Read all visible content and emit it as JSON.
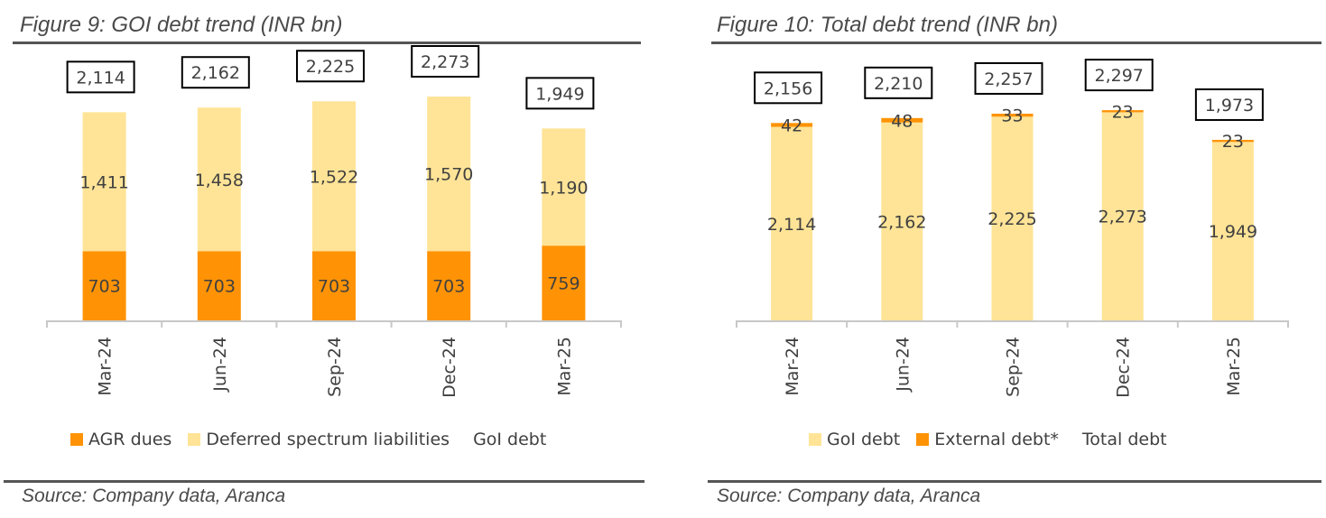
{
  "colors": {
    "agr": "#FF9305",
    "deferred": "#FFE497",
    "goi": "#FFE497",
    "external": "#FF9305",
    "text": "#404040",
    "box_border": "#000000",
    "axis": "#C8C8C8",
    "title": "#4A4A4A"
  },
  "chart_data": [
    {
      "type": "bar",
      "stacked": true,
      "title": "Figure 9: GOI debt trend (INR bn)",
      "source": "Source: Company data, Aranca",
      "xlabel": "",
      "ylabel": "",
      "categories": [
        "Mar-24",
        "Jun-24",
        "Sep-24",
        "Dec-24",
        "Mar-25"
      ],
      "series": [
        {
          "name": "AGR dues",
          "values": [
            703,
            703,
            703,
            703,
            759
          ],
          "labels": [
            "703",
            "703",
            "703",
            "703",
            "759"
          ],
          "color_key": "agr"
        },
        {
          "name": "Deferred spectrum liabilities",
          "values": [
            1411,
            1458,
            1522,
            1570,
            1190
          ],
          "labels": [
            "1,411",
            "1,458",
            "1,522",
            "1,570",
            "1,190"
          ],
          "color_key": "deferred"
        }
      ],
      "totals": {
        "name": "GoI debt",
        "values": [
          2114,
          2162,
          2225,
          2273,
          1949
        ],
        "labels": [
          "2,114",
          "2,162",
          "2,225",
          "2,273",
          "1,949"
        ]
      },
      "ylim": [
        0,
        2700
      ],
      "grid": false,
      "legend_position": "bottom",
      "legend": [
        "AGR dues",
        "Deferred spectrum liabilities",
        "GoI debt"
      ]
    },
    {
      "type": "bar",
      "stacked": true,
      "title": "Figure 10: Total debt trend (INR bn)",
      "source": "Source: Company data, Aranca",
      "xlabel": "",
      "ylabel": "",
      "categories": [
        "Mar-24",
        "Jun-24",
        "Sep-24",
        "Dec-24",
        "Mar-25"
      ],
      "series": [
        {
          "name": "GoI debt",
          "values": [
            2114,
            2162,
            2225,
            2273,
            1949
          ],
          "labels": [
            "2,114",
            "2,162",
            "2,225",
            "2,273",
            "1,949"
          ],
          "color_key": "goi"
        },
        {
          "name": "External debt*",
          "values": [
            42,
            48,
            33,
            23,
            23
          ],
          "labels": [
            "42",
            "48",
            "33",
            "23",
            "23"
          ],
          "color_key": "external"
        }
      ],
      "totals": {
        "name": "Total debt",
        "values": [
          2156,
          2210,
          2257,
          2297,
          1973
        ],
        "labels": [
          "2,156",
          "2,210",
          "2,257",
          "2,297",
          "1,973"
        ]
      },
      "ylim": [
        0,
        2700
      ],
      "grid": false,
      "legend_position": "bottom",
      "legend": [
        "GoI debt",
        "External debt*",
        "Total debt"
      ]
    }
  ]
}
